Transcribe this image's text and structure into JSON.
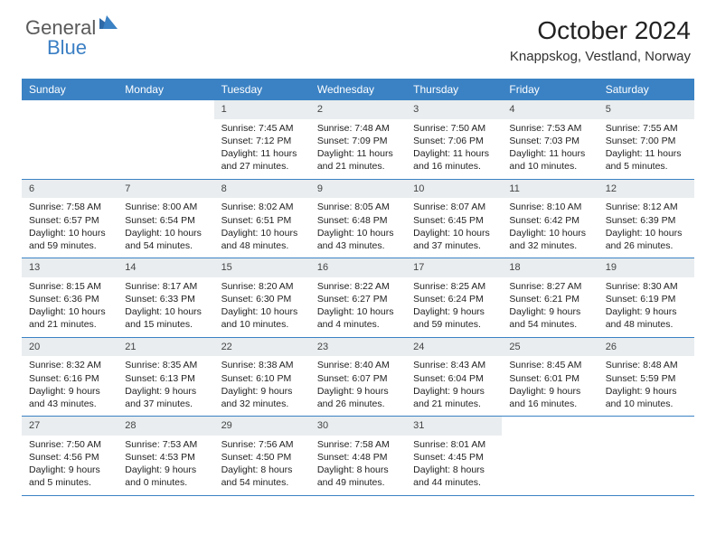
{
  "brand": {
    "text_general": "General",
    "text_blue": "Blue"
  },
  "title": "October 2024",
  "location": "Knappskog, Vestland, Norway",
  "colors": {
    "header_bg": "#3b82c4",
    "daynum_bg": "#e9edef",
    "rule": "#3b82c4",
    "text": "#222222",
    "header_text": "#ffffff"
  },
  "day_names": [
    "Sunday",
    "Monday",
    "Tuesday",
    "Wednesday",
    "Thursday",
    "Friday",
    "Saturday"
  ],
  "weeks": [
    [
      null,
      null,
      {
        "n": "1",
        "sr": "Sunrise: 7:45 AM",
        "ss": "Sunset: 7:12 PM",
        "dl": "Daylight: 11 hours and 27 minutes."
      },
      {
        "n": "2",
        "sr": "Sunrise: 7:48 AM",
        "ss": "Sunset: 7:09 PM",
        "dl": "Daylight: 11 hours and 21 minutes."
      },
      {
        "n": "3",
        "sr": "Sunrise: 7:50 AM",
        "ss": "Sunset: 7:06 PM",
        "dl": "Daylight: 11 hours and 16 minutes."
      },
      {
        "n": "4",
        "sr": "Sunrise: 7:53 AM",
        "ss": "Sunset: 7:03 PM",
        "dl": "Daylight: 11 hours and 10 minutes."
      },
      {
        "n": "5",
        "sr": "Sunrise: 7:55 AM",
        "ss": "Sunset: 7:00 PM",
        "dl": "Daylight: 11 hours and 5 minutes."
      }
    ],
    [
      {
        "n": "6",
        "sr": "Sunrise: 7:58 AM",
        "ss": "Sunset: 6:57 PM",
        "dl": "Daylight: 10 hours and 59 minutes."
      },
      {
        "n": "7",
        "sr": "Sunrise: 8:00 AM",
        "ss": "Sunset: 6:54 PM",
        "dl": "Daylight: 10 hours and 54 minutes."
      },
      {
        "n": "8",
        "sr": "Sunrise: 8:02 AM",
        "ss": "Sunset: 6:51 PM",
        "dl": "Daylight: 10 hours and 48 minutes."
      },
      {
        "n": "9",
        "sr": "Sunrise: 8:05 AM",
        "ss": "Sunset: 6:48 PM",
        "dl": "Daylight: 10 hours and 43 minutes."
      },
      {
        "n": "10",
        "sr": "Sunrise: 8:07 AM",
        "ss": "Sunset: 6:45 PM",
        "dl": "Daylight: 10 hours and 37 minutes."
      },
      {
        "n": "11",
        "sr": "Sunrise: 8:10 AM",
        "ss": "Sunset: 6:42 PM",
        "dl": "Daylight: 10 hours and 32 minutes."
      },
      {
        "n": "12",
        "sr": "Sunrise: 8:12 AM",
        "ss": "Sunset: 6:39 PM",
        "dl": "Daylight: 10 hours and 26 minutes."
      }
    ],
    [
      {
        "n": "13",
        "sr": "Sunrise: 8:15 AM",
        "ss": "Sunset: 6:36 PM",
        "dl": "Daylight: 10 hours and 21 minutes."
      },
      {
        "n": "14",
        "sr": "Sunrise: 8:17 AM",
        "ss": "Sunset: 6:33 PM",
        "dl": "Daylight: 10 hours and 15 minutes."
      },
      {
        "n": "15",
        "sr": "Sunrise: 8:20 AM",
        "ss": "Sunset: 6:30 PM",
        "dl": "Daylight: 10 hours and 10 minutes."
      },
      {
        "n": "16",
        "sr": "Sunrise: 8:22 AM",
        "ss": "Sunset: 6:27 PM",
        "dl": "Daylight: 10 hours and 4 minutes."
      },
      {
        "n": "17",
        "sr": "Sunrise: 8:25 AM",
        "ss": "Sunset: 6:24 PM",
        "dl": "Daylight: 9 hours and 59 minutes."
      },
      {
        "n": "18",
        "sr": "Sunrise: 8:27 AM",
        "ss": "Sunset: 6:21 PM",
        "dl": "Daylight: 9 hours and 54 minutes."
      },
      {
        "n": "19",
        "sr": "Sunrise: 8:30 AM",
        "ss": "Sunset: 6:19 PM",
        "dl": "Daylight: 9 hours and 48 minutes."
      }
    ],
    [
      {
        "n": "20",
        "sr": "Sunrise: 8:32 AM",
        "ss": "Sunset: 6:16 PM",
        "dl": "Daylight: 9 hours and 43 minutes."
      },
      {
        "n": "21",
        "sr": "Sunrise: 8:35 AM",
        "ss": "Sunset: 6:13 PM",
        "dl": "Daylight: 9 hours and 37 minutes."
      },
      {
        "n": "22",
        "sr": "Sunrise: 8:38 AM",
        "ss": "Sunset: 6:10 PM",
        "dl": "Daylight: 9 hours and 32 minutes."
      },
      {
        "n": "23",
        "sr": "Sunrise: 8:40 AM",
        "ss": "Sunset: 6:07 PM",
        "dl": "Daylight: 9 hours and 26 minutes."
      },
      {
        "n": "24",
        "sr": "Sunrise: 8:43 AM",
        "ss": "Sunset: 6:04 PM",
        "dl": "Daylight: 9 hours and 21 minutes."
      },
      {
        "n": "25",
        "sr": "Sunrise: 8:45 AM",
        "ss": "Sunset: 6:01 PM",
        "dl": "Daylight: 9 hours and 16 minutes."
      },
      {
        "n": "26",
        "sr": "Sunrise: 8:48 AM",
        "ss": "Sunset: 5:59 PM",
        "dl": "Daylight: 9 hours and 10 minutes."
      }
    ],
    [
      {
        "n": "27",
        "sr": "Sunrise: 7:50 AM",
        "ss": "Sunset: 4:56 PM",
        "dl": "Daylight: 9 hours and 5 minutes."
      },
      {
        "n": "28",
        "sr": "Sunrise: 7:53 AM",
        "ss": "Sunset: 4:53 PM",
        "dl": "Daylight: 9 hours and 0 minutes."
      },
      {
        "n": "29",
        "sr": "Sunrise: 7:56 AM",
        "ss": "Sunset: 4:50 PM",
        "dl": "Daylight: 8 hours and 54 minutes."
      },
      {
        "n": "30",
        "sr": "Sunrise: 7:58 AM",
        "ss": "Sunset: 4:48 PM",
        "dl": "Daylight: 8 hours and 49 minutes."
      },
      {
        "n": "31",
        "sr": "Sunrise: 8:01 AM",
        "ss": "Sunset: 4:45 PM",
        "dl": "Daylight: 8 hours and 44 minutes."
      },
      null,
      null
    ]
  ]
}
